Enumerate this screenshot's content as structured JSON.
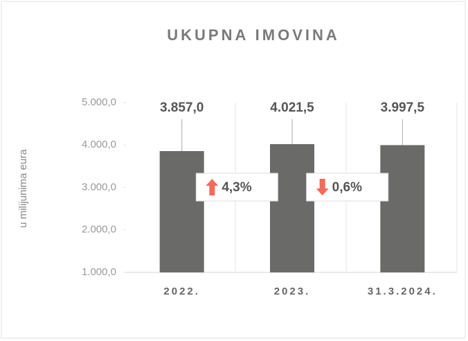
{
  "chart_data": {
    "type": "bar",
    "title": "UKUPNA IMOVINA",
    "y_label": "u milijunima eura",
    "categories": [
      "2022.",
      "2023.",
      "31.3.2024."
    ],
    "values": [
      3857.0,
      4021.5,
      3997.5
    ],
    "value_labels": [
      "3.857,0",
      "4.021,5",
      "3.997,5"
    ],
    "color": "#6a6a68",
    "ylim": [
      1000,
      5000
    ],
    "yticks": [
      {
        "value": 1000,
        "label": "1.000,0"
      },
      {
        "value": 2000,
        "label": "2.000,0"
      },
      {
        "value": 3000,
        "label": "3.000,0"
      },
      {
        "value": 4000,
        "label": "4.000,0"
      },
      {
        "value": 5000,
        "label": "5.000,0"
      }
    ],
    "grid": false,
    "annotations": [
      {
        "text": "4,3%",
        "direction": "up"
      },
      {
        "text": "0,6%",
        "direction": "down"
      }
    ]
  }
}
